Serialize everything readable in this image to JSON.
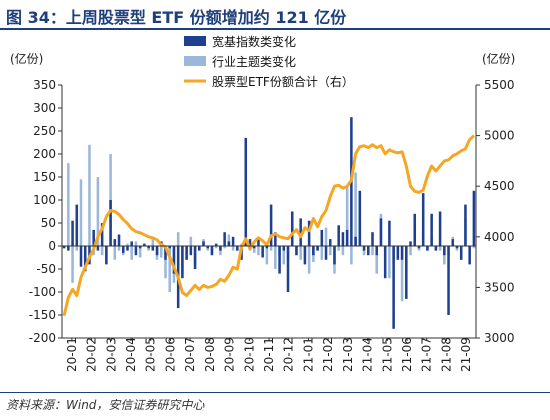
{
  "title": "图 34：上周股票型 ETF 份额增加约 121 亿份",
  "source": "资料来源：Wind，安信证券研究中心",
  "chart_data": {
    "type": "bar",
    "left_unit": "(亿份)",
    "right_unit": "(亿份)",
    "ylim": [
      -200,
      350
    ],
    "y_ticks": [
      -200,
      -150,
      -100,
      -50,
      0,
      50,
      100,
      150,
      200,
      250,
      300,
      350
    ],
    "y2lim": [
      3000,
      5500
    ],
    "y2_ticks": [
      3000,
      3500,
      4000,
      4500,
      5000,
      5500
    ],
    "x_tick_labels": [
      "20-01",
      "20-02",
      "20-03",
      "20-04",
      "20-05",
      "20-06",
      "20-07",
      "20-08",
      "20-09",
      "20-10",
      "20-11",
      "20-12",
      "21-01",
      "21-02",
      "21-03",
      "21-04",
      "21-05",
      "21-06",
      "21-07",
      "21-08",
      "21-09"
    ],
    "legend_position": "top-center",
    "colors": {
      "broad": "#1f3f8f",
      "industry": "#9bb7d9",
      "line": "#f5a623"
    },
    "series": [
      {
        "name": "宽基指数类变化",
        "type": "bar",
        "values": [
          -5,
          -10,
          55,
          90,
          -45,
          -55,
          -40,
          35,
          -10,
          50,
          -40,
          100,
          15,
          25,
          -15,
          -10,
          10,
          -20,
          -5,
          5,
          -5,
          -10,
          -20,
          10,
          -30,
          -5,
          -60,
          -135,
          -70,
          -30,
          -20,
          -50,
          -10,
          10,
          -5,
          -20,
          5,
          -10,
          30,
          10,
          20,
          -10,
          -30,
          235,
          15,
          -5,
          15,
          -25,
          -5,
          90,
          30,
          -60,
          -10,
          -100,
          75,
          -20,
          60,
          -40,
          55,
          -20,
          -10,
          35,
          -30,
          15,
          -40,
          45,
          30,
          35,
          280,
          20,
          120,
          -10,
          -20,
          30,
          -20,
          60,
          -70,
          55,
          -180,
          -30,
          -30,
          -115,
          10,
          70,
          -5,
          115,
          -10,
          70,
          -10,
          75,
          -20,
          -150,
          15,
          -5,
          -30,
          90,
          -40,
          120
        ]
      },
      {
        "name": "行业主题类变化",
        "type": "bar",
        "values": [
          -5,
          180,
          -80,
          -10,
          145,
          -30,
          220,
          -20,
          150,
          -20,
          -25,
          200,
          -30,
          -10,
          -20,
          5,
          -30,
          10,
          -25,
          5,
          -10,
          15,
          -30,
          -25,
          -70,
          -100,
          -80,
          30,
          -60,
          -30,
          20,
          -40,
          -10,
          15,
          -10,
          -20,
          -5,
          -20,
          -5,
          25,
          -10,
          -10,
          5,
          150,
          -10,
          -15,
          -20,
          -20,
          -40,
          -10,
          -50,
          -20,
          -40,
          -30,
          45,
          -20,
          -30,
          -20,
          -60,
          -35,
          -10,
          -30,
          40,
          -20,
          -60,
          -10,
          -20,
          130,
          -40,
          160,
          60,
          -20,
          -10,
          -20,
          -60,
          70,
          -10,
          -70,
          -40,
          -10,
          -120,
          -60,
          -20,
          50,
          -10,
          30,
          -10,
          20,
          -10,
          -10,
          -40,
          -20,
          20,
          -10,
          -30,
          60,
          -5,
          -5
        ]
      },
      {
        "name": "股票型ETF份额合计（右）",
        "type": "line",
        "axis": "right",
        "values": [
          3220,
          3400,
          3480,
          3420,
          3600,
          3700,
          3800,
          3880,
          4000,
          4080,
          4200,
          4260,
          4250,
          4220,
          4170,
          4130,
          4080,
          4050,
          4040,
          4020,
          4000,
          3990,
          3970,
          3920,
          3900,
          3800,
          3700,
          3600,
          3450,
          3420,
          3470,
          3520,
          3480,
          3520,
          3500,
          3510,
          3530,
          3580,
          3560,
          3620,
          3700,
          3680,
          3900,
          3980,
          3880,
          3950,
          3990,
          3960,
          3920,
          4010,
          4030,
          4000,
          3990,
          3980,
          4030,
          4070,
          4000,
          4090,
          4060,
          4180,
          4100,
          4200,
          4260,
          4400,
          4500,
          4510,
          4480,
          4500,
          4560,
          4820,
          4890,
          4900,
          4880,
          4910,
          4880,
          4900,
          4820,
          4860,
          4840,
          4830,
          4840,
          4700,
          4500,
          4450,
          4440,
          4460,
          4600,
          4700,
          4650,
          4700,
          4750,
          4760,
          4800,
          4820,
          4850,
          4870,
          4960,
          5000
        ]
      }
    ]
  }
}
